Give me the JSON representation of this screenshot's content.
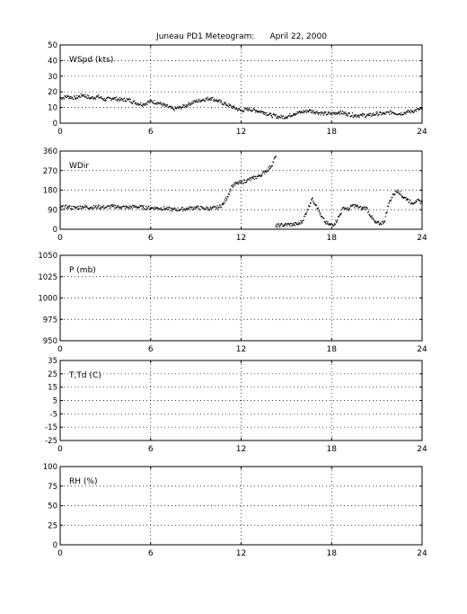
{
  "title": "Juneau PD1 Meteogram:      April 22, 2000",
  "x_ticks": [
    0,
    6,
    12,
    18,
    24
  ],
  "chart_data": [
    {
      "type": "scatter",
      "label": "WSpd (kts)",
      "xlim": [
        0,
        24
      ],
      "ylim": [
        0,
        50
      ],
      "yticks": [
        0,
        10,
        20,
        30,
        40,
        50
      ],
      "grid": true,
      "series": [
        {
          "x": [
            0,
            0.5,
            1,
            1.5,
            2,
            2.5,
            3,
            3.5,
            4,
            4.5,
            5,
            5.5,
            6,
            6.5,
            7,
            7.5,
            8,
            8.5,
            9,
            9.5,
            10,
            10.5,
            11,
            11.5,
            12,
            12.5,
            13,
            13.5,
            14,
            14.5,
            15,
            15.5,
            16,
            16.5,
            17,
            17.5,
            18,
            18.5,
            19,
            19.5,
            20,
            20.5,
            21,
            21.5,
            22,
            22.5,
            23,
            23.5,
            24
          ],
          "y": [
            16,
            17,
            16,
            18,
            16,
            17,
            15,
            16,
            15,
            15,
            13,
            12,
            14,
            13,
            11,
            9,
            10,
            12,
            14,
            15,
            16,
            14,
            12,
            10,
            8,
            9,
            8,
            7,
            5,
            4,
            4,
            6,
            7,
            8,
            7,
            6,
            6,
            7,
            6,
            5,
            5,
            5,
            6,
            6,
            7,
            6,
            7,
            8,
            9
          ]
        }
      ]
    },
    {
      "type": "scatter",
      "label": "WDir",
      "xlim": [
        0,
        24
      ],
      "ylim": [
        0,
        360
      ],
      "yticks": [
        0,
        90,
        180,
        270,
        360
      ],
      "grid": true,
      "series": [
        {
          "x": [
            0,
            0.5,
            1,
            1.5,
            2,
            2.5,
            3,
            3.5,
            4,
            4.5,
            5,
            5.5,
            6,
            6.5,
            7,
            7.5,
            8,
            8.5,
            9,
            9.5,
            10,
            10.5,
            10.8,
            11.1,
            11.4,
            11.7,
            12,
            12.4,
            12.8,
            13.2,
            13.6,
            14.0,
            14.3
          ],
          "y": [
            100,
            102,
            98,
            104,
            100,
            103,
            101,
            105,
            102,
            100,
            104,
            100,
            98,
            97,
            95,
            90,
            92,
            95,
            100,
            96,
            95,
            100,
            115,
            150,
            200,
            210,
            215,
            225,
            235,
            245,
            265,
            290,
            335
          ]
        },
        {
          "x": [
            14.3,
            14.6,
            14.9,
            15.2,
            15.5,
            15.8,
            16.1,
            16.4,
            16.7,
            17.0,
            17.3,
            17.6,
            17.9,
            18.2,
            18.5,
            18.8,
            19.1,
            19.4,
            19.7,
            20.0,
            20.3,
            20.6,
            20.9,
            21.2,
            21.5,
            21.8,
            22.1,
            22.4,
            22.7,
            23.0,
            23.3,
            23.6,
            24.0
          ],
          "y": [
            15,
            18,
            20,
            22,
            22,
            24,
            40,
            90,
            140,
            110,
            60,
            30,
            20,
            25,
            60,
            100,
            90,
            110,
            105,
            95,
            100,
            60,
            30,
            25,
            35,
            120,
            160,
            180,
            150,
            140,
            120,
            130,
            125
          ]
        }
      ]
    },
    {
      "type": "scatter",
      "label": "P (mb)",
      "xlim": [
        0,
        24
      ],
      "ylim": [
        950,
        1050
      ],
      "yticks": [
        950,
        975,
        1000,
        1025,
        1050
      ],
      "grid": true,
      "series": []
    },
    {
      "type": "scatter",
      "label": "T,Td (C)",
      "xlim": [
        0,
        24
      ],
      "ylim": [
        -25,
        35
      ],
      "yticks": [
        -25,
        -15,
        -5,
        5,
        15,
        25,
        35
      ],
      "grid": true,
      "series": []
    },
    {
      "type": "scatter",
      "label": "RH (%)",
      "xlim": [
        0,
        24
      ],
      "ylim": [
        0,
        100
      ],
      "yticks": [
        0,
        25,
        50,
        75,
        100
      ],
      "grid": true,
      "series": []
    }
  ]
}
